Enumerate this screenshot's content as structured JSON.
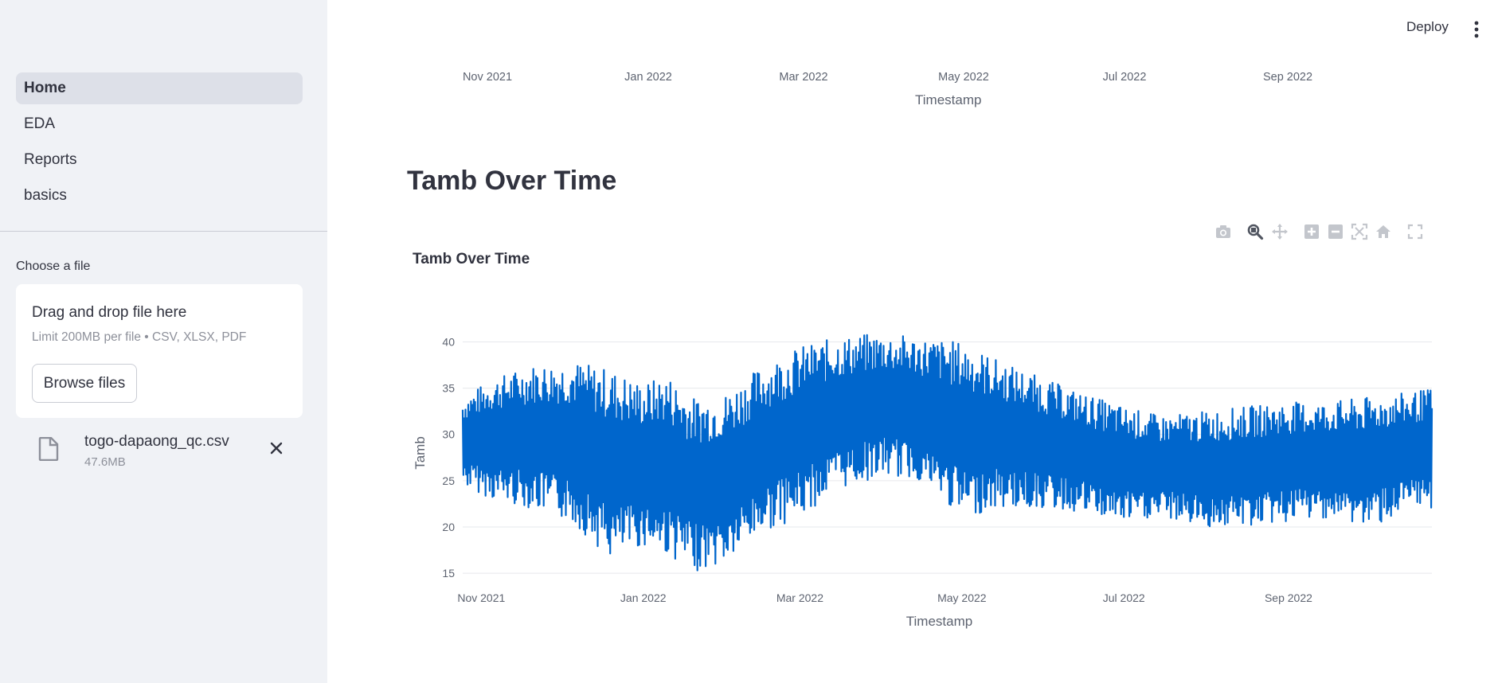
{
  "sidebar": {
    "nav": [
      {
        "label": "Home",
        "active": true
      },
      {
        "label": "EDA",
        "active": false
      },
      {
        "label": "Reports",
        "active": false
      },
      {
        "label": "basics",
        "active": false
      }
    ],
    "uploader": {
      "label": "Choose a file",
      "drop_title": "Drag and drop file here",
      "drop_hint": "Limit 200MB per file • CSV, XLSX, PDF",
      "browse_label": "Browse files"
    },
    "file": {
      "name": "togo-dapaong_qc.csv",
      "size": "47.6MB"
    }
  },
  "header": {
    "deploy_label": "Deploy"
  },
  "previous_chart": {
    "x_ticks": [
      "Nov 2021",
      "Jan 2022",
      "Mar 2022",
      "May 2022",
      "Jul 2022",
      "Sep 2022"
    ],
    "x_title": "Timestamp"
  },
  "section": {
    "title": "Tamb Over Time"
  },
  "modebar": [
    "camera-icon",
    "zoom-icon",
    "pan-icon",
    "zoom-in-icon",
    "zoom-out-icon",
    "autoscale-icon",
    "reset-axes-icon",
    "fullscreen-icon"
  ],
  "colors": {
    "line": "#0066cc",
    "sidebar_bg": "#f0f2f6",
    "text": "#31333f"
  },
  "chart_data": {
    "type": "line",
    "title": "Tamb Over Time",
    "xlabel": "Timestamp",
    "ylabel": "Tamb",
    "x_ticks": [
      "Nov 2021",
      "Jan 2022",
      "Mar 2022",
      "May 2022",
      "Jul 2022",
      "Sep 2022"
    ],
    "y_ticks": [
      15,
      20,
      25,
      30,
      35,
      40
    ],
    "ylim": [
      14.5,
      41.5
    ],
    "xlim": [
      "2021-10-25",
      "2022-10-25"
    ],
    "grid": true,
    "series": [
      {
        "envelope": [
          {
            "x": "2021-10-25",
            "min": 24.5,
            "max": 34.0
          },
          {
            "x": "2021-11-05",
            "min": 23.0,
            "max": 36.0
          },
          {
            "x": "2021-11-20",
            "min": 22.0,
            "max": 37.5
          },
          {
            "x": "2021-12-05",
            "min": 20.5,
            "max": 38.0
          },
          {
            "x": "2021-12-20",
            "min": 16.5,
            "max": 37.0
          },
          {
            "x": "2022-01-01",
            "min": 18.0,
            "max": 35.5
          },
          {
            "x": "2022-01-10",
            "min": 17.0,
            "max": 36.5
          },
          {
            "x": "2022-01-20",
            "min": 15.2,
            "max": 34.0
          },
          {
            "x": "2022-02-01",
            "min": 16.0,
            "max": 34.5
          },
          {
            "x": "2022-02-15",
            "min": 19.5,
            "max": 37.5
          },
          {
            "x": "2022-03-01",
            "min": 21.0,
            "max": 39.5
          },
          {
            "x": "2022-03-15",
            "min": 24.0,
            "max": 40.5
          },
          {
            "x": "2022-04-01",
            "min": 25.5,
            "max": 41.0
          },
          {
            "x": "2022-04-15",
            "min": 25.0,
            "max": 40.5
          },
          {
            "x": "2022-05-01",
            "min": 21.0,
            "max": 40.0
          },
          {
            "x": "2022-05-15",
            "min": 22.0,
            "max": 38.0
          },
          {
            "x": "2022-06-01",
            "min": 22.0,
            "max": 36.0
          },
          {
            "x": "2022-06-15",
            "min": 21.5,
            "max": 34.5
          },
          {
            "x": "2022-07-01",
            "min": 20.5,
            "max": 33.0
          },
          {
            "x": "2022-07-15",
            "min": 21.0,
            "max": 32.0
          },
          {
            "x": "2022-08-01",
            "min": 20.0,
            "max": 32.5
          },
          {
            "x": "2022-08-15",
            "min": 20.0,
            "max": 33.0
          },
          {
            "x": "2022-09-01",
            "min": 20.5,
            "max": 33.5
          },
          {
            "x": "2022-09-15",
            "min": 21.0,
            "max": 33.5
          },
          {
            "x": "2022-10-01",
            "min": 20.0,
            "max": 34.0
          },
          {
            "x": "2022-10-15",
            "min": 21.5,
            "max": 34.5
          },
          {
            "x": "2022-10-25",
            "min": 22.0,
            "max": 35.0
          }
        ]
      }
    ]
  }
}
